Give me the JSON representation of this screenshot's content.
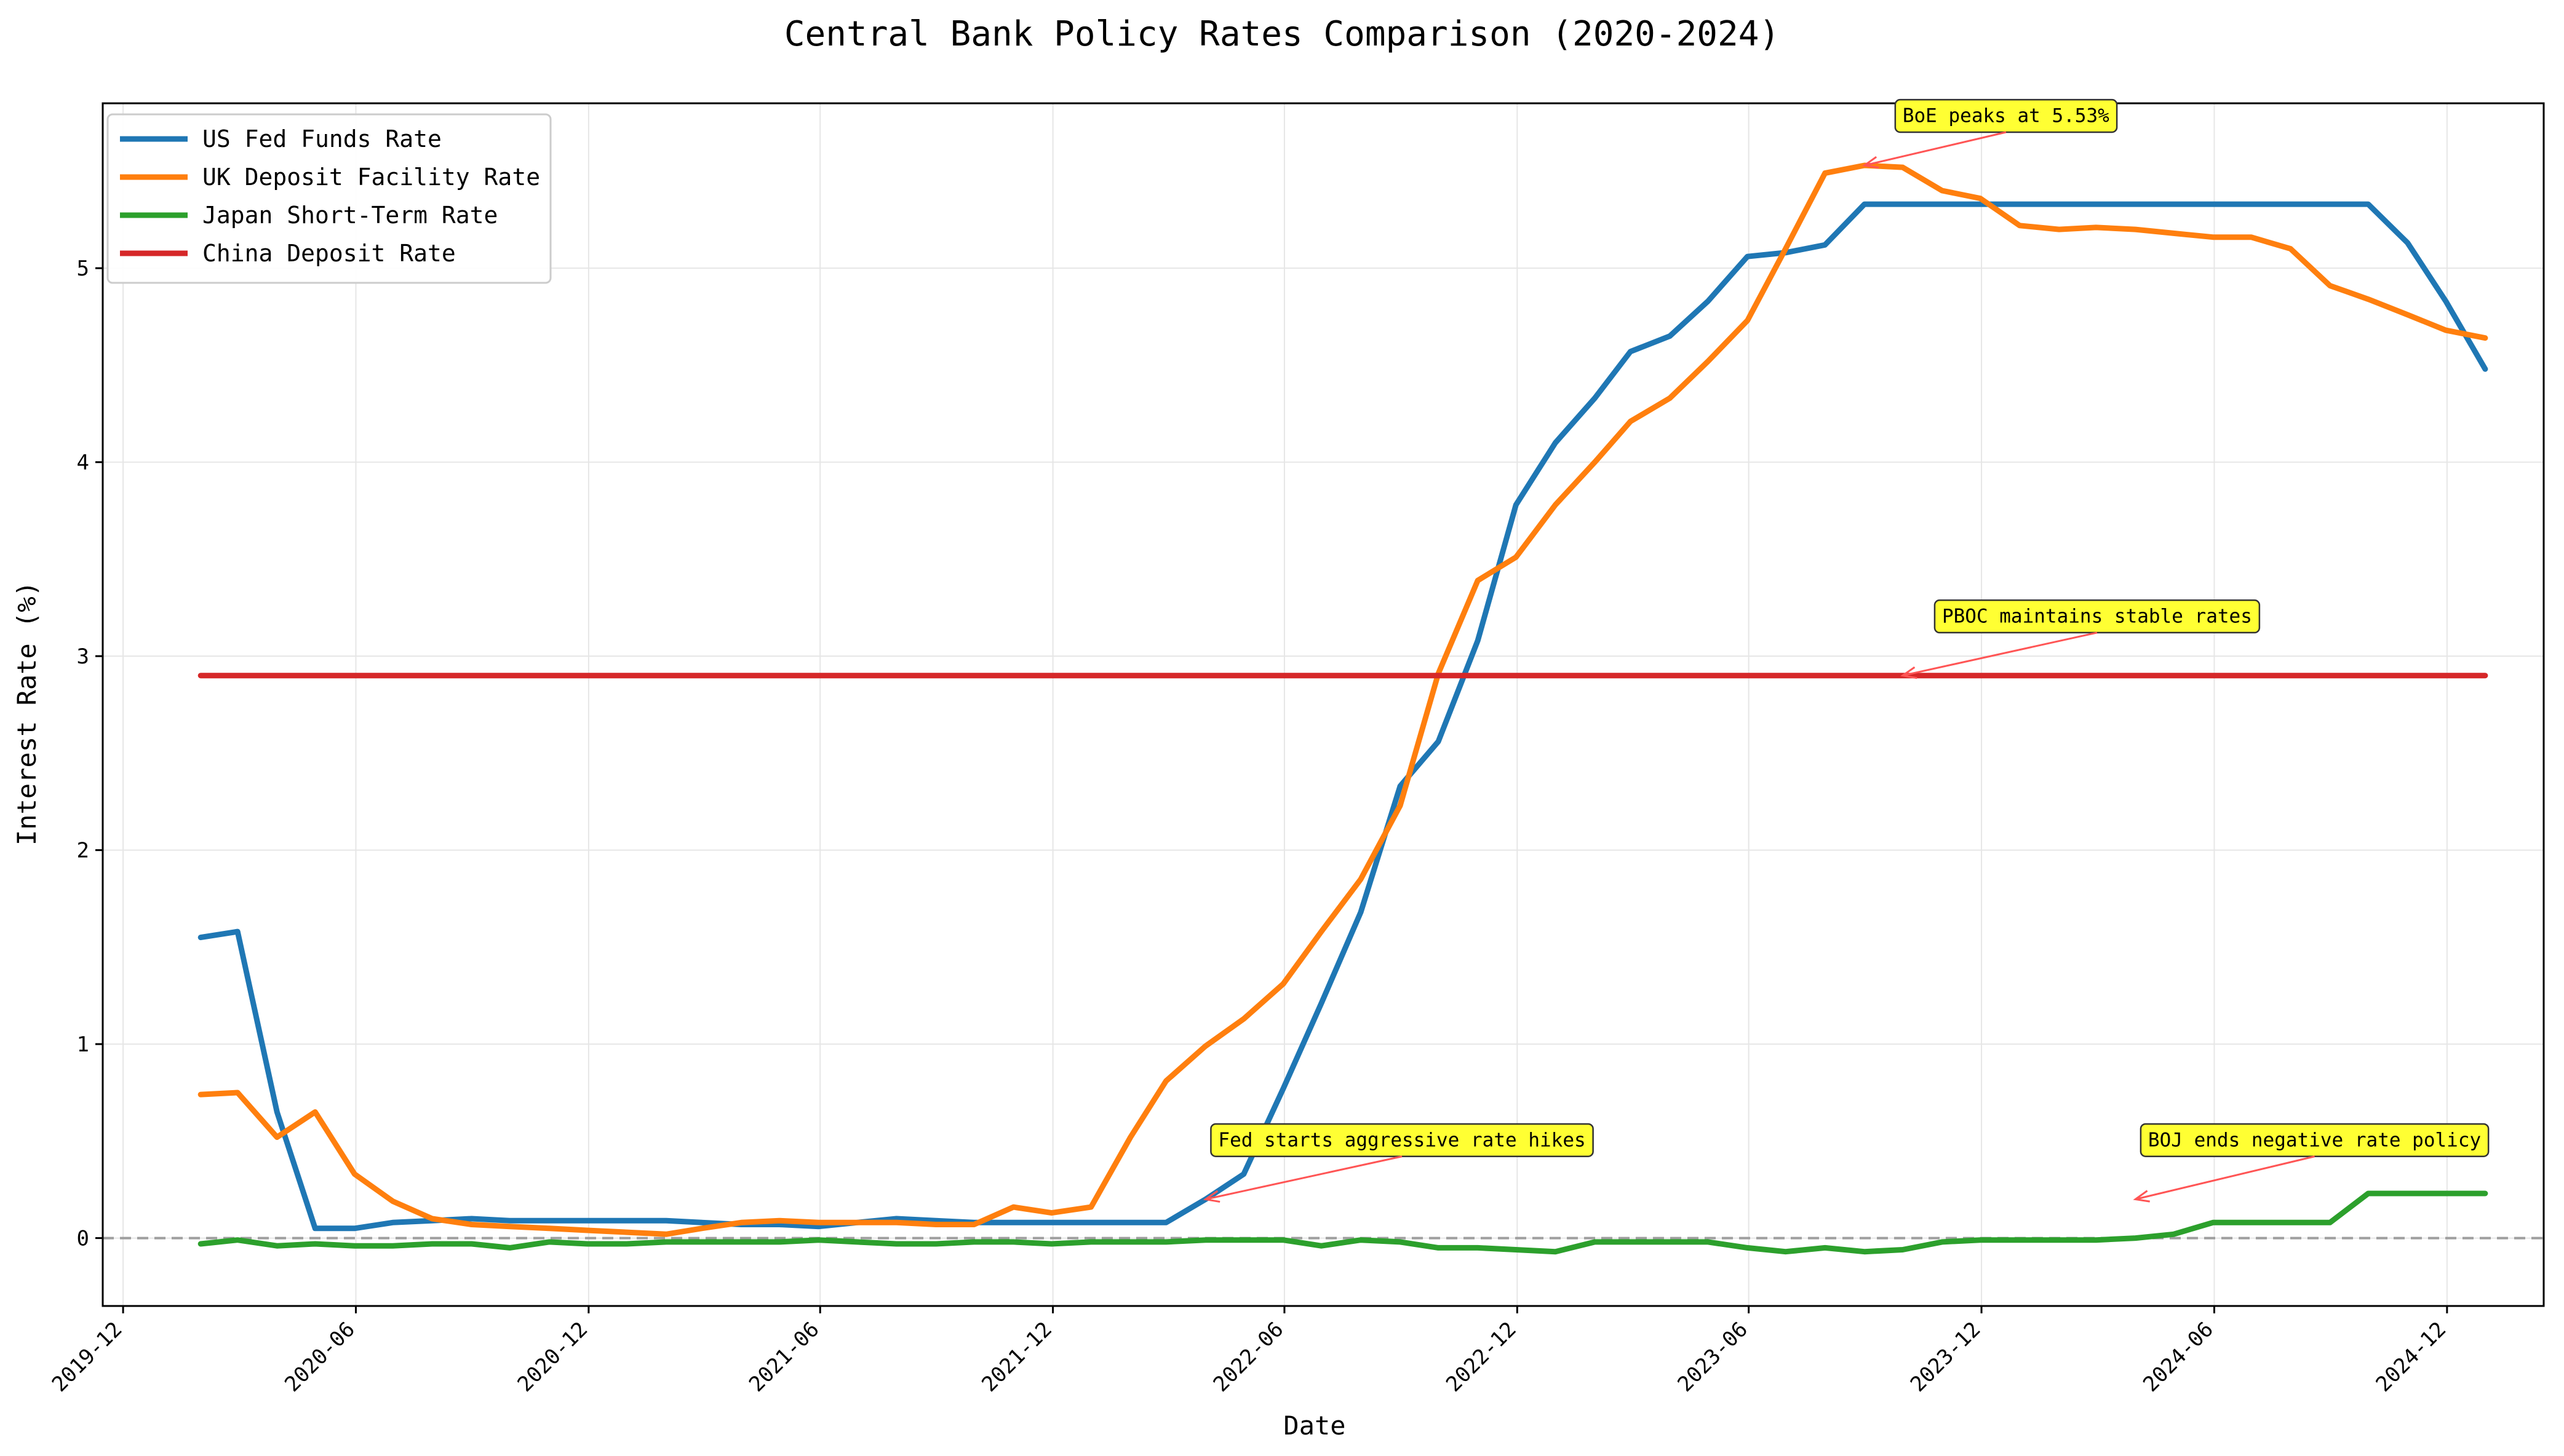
{
  "chart_data": {
    "type": "line",
    "title": "Central Bank Policy Rates Comparison (2020-2024)",
    "xlabel": "Date",
    "ylabel": "Interest Rate (%)",
    "x_tick_labels": [
      "2019-12",
      "2020-06",
      "2020-12",
      "2021-06",
      "2021-12",
      "2022-06",
      "2022-12",
      "2023-06",
      "2023-12",
      "2024-06",
      "2024-12"
    ],
    "y_ticks": [
      0,
      1,
      2,
      3,
      4,
      5
    ],
    "ylim": [
      -0.35,
      5.85
    ],
    "xlim": [
      "2019-11-15",
      "2025-02-15"
    ],
    "grid": true,
    "legend_position": "top-left",
    "reference_line": {
      "y": 0,
      "style": "dashed",
      "color": "#9e9e9e"
    },
    "x": [
      "2020-01-31",
      "2020-02-29",
      "2020-03-31",
      "2020-04-30",
      "2020-05-31",
      "2020-06-30",
      "2020-07-31",
      "2020-08-31",
      "2020-09-30",
      "2020-10-31",
      "2020-11-30",
      "2020-12-31",
      "2021-01-31",
      "2021-02-28",
      "2021-03-31",
      "2021-04-30",
      "2021-05-31",
      "2021-06-30",
      "2021-07-31",
      "2021-08-31",
      "2021-09-30",
      "2021-10-31",
      "2021-11-30",
      "2021-12-31",
      "2022-01-31",
      "2022-02-28",
      "2022-03-31",
      "2022-04-30",
      "2022-05-31",
      "2022-06-30",
      "2022-07-31",
      "2022-08-31",
      "2022-09-30",
      "2022-10-31",
      "2022-11-30",
      "2022-12-31",
      "2023-01-31",
      "2023-02-28",
      "2023-03-31",
      "2023-04-30",
      "2023-05-31",
      "2023-06-30",
      "2023-07-31",
      "2023-08-31",
      "2023-09-30",
      "2023-10-31",
      "2023-11-30",
      "2023-12-31",
      "2024-01-31",
      "2024-02-29",
      "2024-03-31",
      "2024-04-30",
      "2024-05-31",
      "2024-06-30",
      "2024-07-31",
      "2024-08-31",
      "2024-09-30",
      "2024-10-31",
      "2024-11-30",
      "2024-12-31"
    ],
    "series": [
      {
        "name": "US Fed Funds Rate",
        "color": "#1f77b4",
        "values": [
          1.55,
          1.58,
          0.65,
          0.05,
          0.05,
          0.08,
          0.09,
          0.1,
          0.09,
          0.09,
          0.09,
          0.09,
          0.09,
          0.08,
          0.07,
          0.07,
          0.06,
          0.08,
          0.1,
          0.09,
          0.08,
          0.08,
          0.08,
          0.08,
          0.08,
          0.08,
          0.2,
          0.33,
          0.77,
          1.21,
          1.68,
          2.33,
          2.56,
          3.08,
          3.78,
          4.1,
          4.33,
          4.57,
          4.65,
          4.83,
          5.06,
          5.08,
          5.12,
          5.33,
          5.33,
          5.33,
          5.33,
          5.33,
          5.33,
          5.33,
          5.33,
          5.33,
          5.33,
          5.33,
          5.33,
          5.33,
          5.33,
          5.13,
          4.83,
          4.48
        ]
      },
      {
        "name": "UK Deposit Facility Rate",
        "color": "#ff7f0e",
        "values": [
          0.74,
          0.75,
          0.52,
          0.65,
          0.33,
          0.19,
          0.1,
          0.07,
          0.06,
          0.05,
          0.04,
          0.03,
          0.02,
          0.05,
          0.08,
          0.09,
          0.08,
          0.08,
          0.08,
          0.07,
          0.07,
          0.16,
          0.13,
          0.16,
          0.52,
          0.81,
          0.99,
          1.13,
          1.31,
          1.58,
          1.85,
          2.23,
          2.91,
          3.39,
          3.51,
          3.78,
          4.0,
          4.21,
          4.33,
          4.52,
          4.73,
          5.1,
          5.49,
          5.53,
          5.52,
          5.4,
          5.36,
          5.22,
          5.2,
          5.21,
          5.2,
          5.18,
          5.16,
          5.16,
          5.1,
          4.91,
          4.84,
          4.76,
          4.68,
          4.64
        ]
      },
      {
        "name": "Japan Short-Term Rate",
        "color": "#2ca02c",
        "values": [
          -0.03,
          -0.01,
          -0.04,
          -0.03,
          -0.04,
          -0.04,
          -0.03,
          -0.03,
          -0.05,
          -0.02,
          -0.03,
          -0.03,
          -0.02,
          -0.02,
          -0.02,
          -0.02,
          -0.01,
          -0.02,
          -0.03,
          -0.03,
          -0.02,
          -0.02,
          -0.03,
          -0.02,
          -0.02,
          -0.02,
          -0.01,
          -0.01,
          -0.01,
          -0.04,
          -0.01,
          -0.02,
          -0.05,
          -0.05,
          -0.06,
          -0.07,
          -0.02,
          -0.02,
          -0.02,
          -0.02,
          -0.05,
          -0.07,
          -0.05,
          -0.07,
          -0.06,
          -0.02,
          -0.01,
          -0.01,
          -0.01,
          -0.01,
          0.0,
          0.02,
          0.08,
          0.08,
          0.08,
          0.08,
          0.23,
          0.23,
          0.23,
          0.23
        ]
      },
      {
        "name": "China Deposit Rate",
        "color": "#d62728",
        "values": [
          2.9,
          2.9,
          2.9,
          2.9,
          2.9,
          2.9,
          2.9,
          2.9,
          2.9,
          2.9,
          2.9,
          2.9,
          2.9,
          2.9,
          2.9,
          2.9,
          2.9,
          2.9,
          2.9,
          2.9,
          2.9,
          2.9,
          2.9,
          2.9,
          2.9,
          2.9,
          2.9,
          2.9,
          2.9,
          2.9,
          2.9,
          2.9,
          2.9,
          2.9,
          2.9,
          2.9,
          2.9,
          2.9,
          2.9,
          2.9,
          2.9,
          2.9,
          2.9,
          2.9,
          2.9,
          2.9,
          2.9,
          2.9,
          2.9,
          2.9,
          2.9,
          2.9,
          2.9,
          2.9,
          2.9,
          2.9,
          2.9,
          2.9,
          2.9,
          2.9
        ]
      }
    ],
    "annotations": [
      {
        "text": "BoE peaks at 5.53%",
        "point": {
          "x": "2023-08-31",
          "y": 5.53
        },
        "text_pos": {
          "x": "2023-09-30",
          "y": 5.78
        }
      },
      {
        "text": "PBOC maintains stable rates",
        "point": {
          "x": "2023-09-30",
          "y": 2.9
        },
        "text_pos": {
          "x": "2023-10-31",
          "y": 3.2
        }
      },
      {
        "text": "Fed starts aggressive rate hikes",
        "point": {
          "x": "2022-03-31",
          "y": 0.2
        },
        "text_pos": {
          "x": "2022-04-10",
          "y": 0.5
        }
      },
      {
        "text": "BOJ ends negative rate policy",
        "point": {
          "x": "2024-03-31",
          "y": 0.2
        },
        "text_pos": {
          "x": "2024-04-10",
          "y": 0.5
        }
      }
    ],
    "annotation_style": {
      "box_fill": "#ffff33",
      "arrow_color": "#ff5555"
    }
  }
}
